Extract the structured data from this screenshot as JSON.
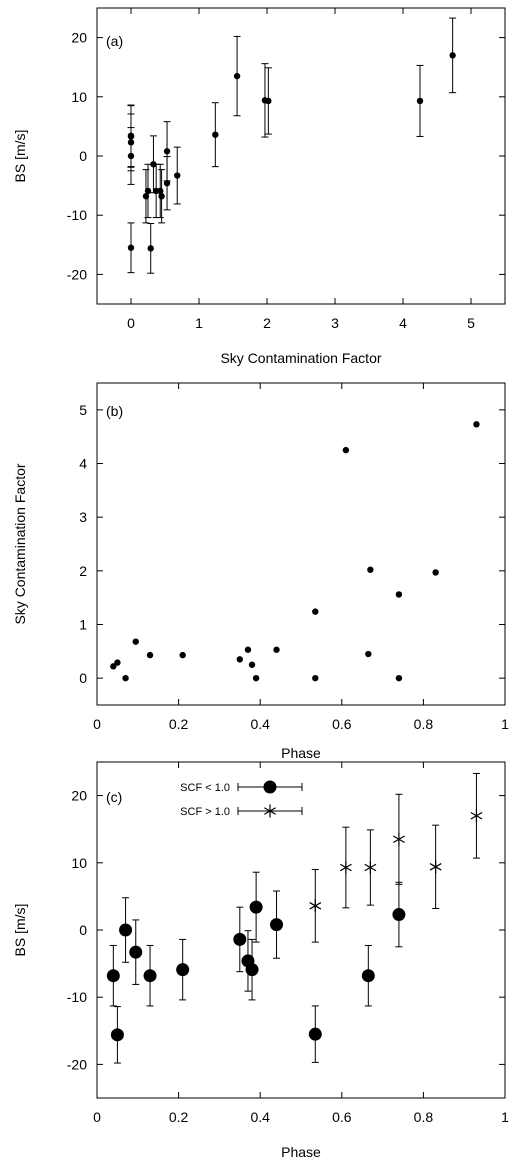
{
  "chart_data": [
    {
      "type": "scatter",
      "panel_label": "(a)",
      "xlabel": "Sky Contamination Factor",
      "ylabel": "BS [m/s]",
      "xlim": [
        -0.5,
        5.5
      ],
      "ylim": [
        -25,
        25
      ],
      "x_ticks": [
        0,
        1,
        2,
        3,
        4,
        5
      ],
      "x_tick_labels": [
        "0",
        "1",
        "2",
        "3",
        "4",
        "5"
      ],
      "y_ticks": [
        -20,
        -10,
        0,
        10,
        20
      ],
      "y_tick_labels": [
        "-20",
        "-10",
        "0",
        "10",
        "20"
      ],
      "grid": false,
      "series": [
        {
          "x": [
            0.0,
            0.0,
            0.0,
            0.0,
            0.0,
            0.0,
            0.22,
            0.25,
            0.29,
            0.33,
            0.37,
            0.43,
            0.45,
            0.53,
            0.53,
            0.68,
            1.24,
            1.56,
            1.97,
            2.02,
            4.25,
            4.73
          ],
          "y": [
            3.4,
            2.3,
            0.0,
            -15.5,
            3.3,
            3.4,
            -6.8,
            -5.9,
            -15.6,
            -1.4,
            -5.9,
            -5.9,
            -6.8,
            0.8,
            -4.6,
            -3.3,
            3.6,
            13.5,
            9.4,
            9.3,
            9.3,
            17.0
          ],
          "yerr": [
            5.2,
            4.8,
            4.8,
            4.2,
            5.2,
            5.2,
            4.5,
            4.5,
            4.2,
            4.8,
            4.5,
            4.5,
            4.5,
            5.0,
            4.5,
            4.8,
            5.4,
            6.7,
            6.2,
            5.6,
            6.0,
            6.3
          ]
        }
      ]
    },
    {
      "type": "scatter",
      "panel_label": "(b)",
      "xlabel": "Phase",
      "ylabel": "Sky Contamination Factor",
      "xlim": [
        0,
        1
      ],
      "ylim": [
        -0.5,
        5.5
      ],
      "x_ticks": [
        0,
        0.2,
        0.4,
        0.6,
        0.8,
        1
      ],
      "x_tick_labels": [
        "0",
        "0.2",
        "0.4",
        "0.6",
        "0.8",
        "1"
      ],
      "y_ticks": [
        0,
        1,
        2,
        3,
        4,
        5
      ],
      "y_tick_labels": [
        "0",
        "1",
        "2",
        "3",
        "4",
        "5"
      ],
      "grid": false,
      "series": [
        {
          "x": [
            0.04,
            0.05,
            0.07,
            0.095,
            0.13,
            0.21,
            0.35,
            0.37,
            0.38,
            0.39,
            0.44,
            0.535,
            0.535,
            0.61,
            0.665,
            0.67,
            0.74,
            0.74,
            0.83,
            0.93
          ],
          "y": [
            0.22,
            0.29,
            0.0,
            0.68,
            0.43,
            0.43,
            0.35,
            0.53,
            0.25,
            0.0,
            0.53,
            1.24,
            0.0,
            4.25,
            0.45,
            2.02,
            1.56,
            0.0,
            1.97,
            4.73
          ]
        }
      ]
    },
    {
      "type": "scatter",
      "panel_label": "(c)",
      "xlabel": "Phase",
      "ylabel": "BS [m/s]",
      "xlim": [
        0,
        1
      ],
      "ylim": [
        -25,
        25
      ],
      "x_ticks": [
        0,
        0.2,
        0.4,
        0.6,
        0.8,
        1
      ],
      "x_tick_labels": [
        "0",
        "0.2",
        "0.4",
        "0.6",
        "0.8",
        "1"
      ],
      "y_ticks": [
        -20,
        -10,
        0,
        10,
        20
      ],
      "y_tick_labels": [
        "-20",
        "-10",
        "0",
        "10",
        "20"
      ],
      "grid": false,
      "legend_position": "top-left",
      "series": [
        {
          "name": "SCF < 1.0",
          "marker": "circle",
          "x": [
            0.04,
            0.05,
            0.07,
            0.095,
            0.13,
            0.21,
            0.35,
            0.37,
            0.38,
            0.39,
            0.44,
            0.535,
            0.665,
            0.74
          ],
          "y": [
            -6.8,
            -15.6,
            0.0,
            -3.3,
            -6.8,
            -5.9,
            -1.4,
            -4.6,
            -5.9,
            3.4,
            0.8,
            -15.5,
            -6.8,
            2.3
          ],
          "yerr": [
            4.5,
            4.2,
            4.8,
            4.8,
            4.5,
            4.5,
            4.8,
            4.5,
            4.5,
            5.2,
            5.0,
            4.2,
            4.5,
            4.8
          ]
        },
        {
          "name": "SCF > 1.0",
          "marker": "star",
          "x": [
            0.535,
            0.61,
            0.67,
            0.74,
            0.83,
            0.93
          ],
          "y": [
            3.6,
            9.3,
            9.3,
            13.5,
            9.4,
            17.0
          ],
          "yerr": [
            5.4,
            6.0,
            5.6,
            6.7,
            6.2,
            6.3
          ]
        }
      ]
    }
  ]
}
